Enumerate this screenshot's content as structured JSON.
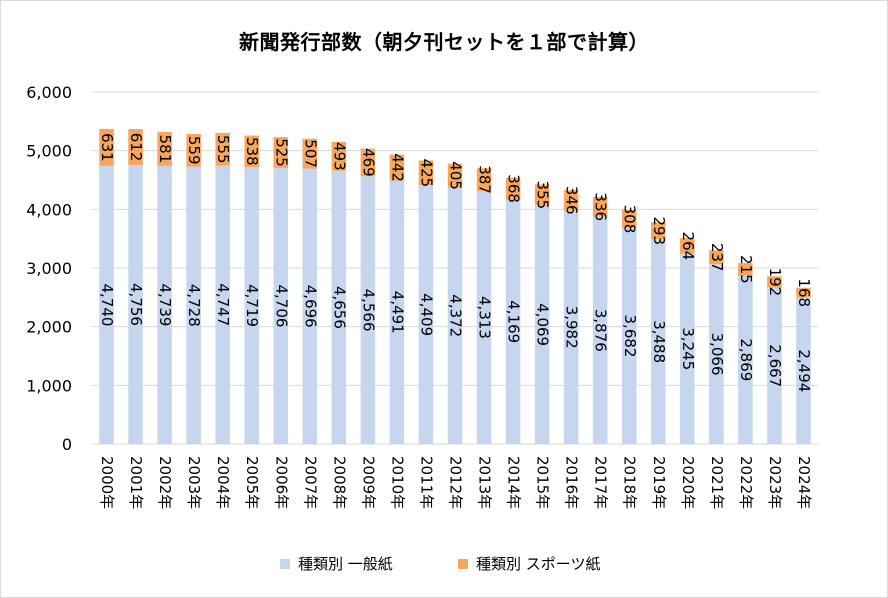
{
  "title": "新聞発行部数（朝夕刊セットを１部で計算）",
  "colors": {
    "general": "#c5d6ee",
    "sports": "#f7a65e",
    "grid": "#d9d9d9",
    "background": "#ffffff"
  },
  "chart_data": {
    "type": "bar",
    "stacked": true,
    "title": "新聞発行部数（朝夕刊セットを１部で計算）",
    "categories": [
      "2000年",
      "2001年",
      "2002年",
      "2003年",
      "2004年",
      "2005年",
      "2006年",
      "2007年",
      "2008年",
      "2009年",
      "2010年",
      "2011年",
      "2012年",
      "2013年",
      "2014年",
      "2015年",
      "2016年",
      "2017年",
      "2018年",
      "2019年",
      "2020年",
      "2021年",
      "2022年",
      "2023年",
      "2024年"
    ],
    "series": [
      {
        "name": "種類別 一般紙",
        "values": [
          4740,
          4756,
          4739,
          4728,
          4747,
          4719,
          4706,
          4696,
          4656,
          4566,
          4491,
          4409,
          4372,
          4313,
          4169,
          4069,
          3982,
          3876,
          3682,
          3488,
          3245,
          3066,
          2869,
          2667,
          2494
        ]
      },
      {
        "name": "種類別 スポーツ紙",
        "values": [
          631,
          612,
          581,
          559,
          555,
          538,
          525,
          507,
          493,
          469,
          442,
          425,
          405,
          387,
          368,
          355,
          346,
          336,
          308,
          293,
          264,
          237,
          215,
          192,
          168
        ]
      }
    ],
    "ylim": [
      0,
      6000
    ],
    "yticks": [
      "0",
      "1,000",
      "2,000",
      "3,000",
      "4,000",
      "5,000",
      "6,000"
    ],
    "grid": true,
    "legend": "bottom",
    "data_labels": "rotated"
  }
}
